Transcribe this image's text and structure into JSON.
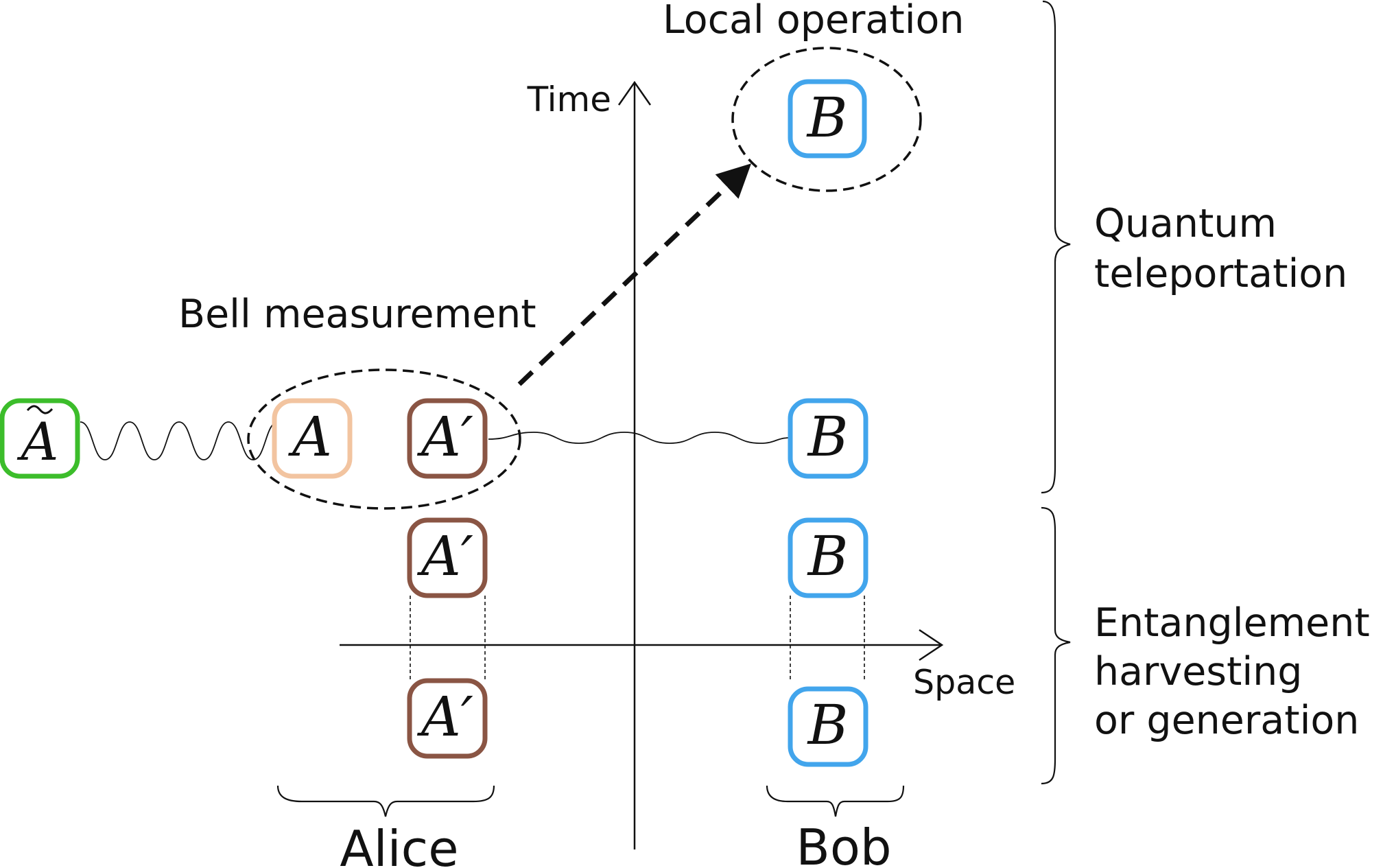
{
  "axes": {
    "time_label": "Time",
    "space_label": "Space"
  },
  "annotations": {
    "local_operation": "Local operation",
    "bell_measurement": "Bell measurement"
  },
  "groups": {
    "alice": "Alice",
    "bob": "Bob",
    "quantum_teleportation": [
      "Quantum",
      "teleportation"
    ],
    "entanglement": [
      "Entanglement",
      "harvesting",
      "or generation"
    ]
  },
  "systems": {
    "a_tilde": "A",
    "a": "A",
    "a_prime": "A′",
    "b": "B"
  },
  "colors": {
    "a_tilde": "#3cbd2b",
    "a": "#f2c4a0",
    "a_prime": "#8a5544",
    "b": "#42a5ec"
  }
}
